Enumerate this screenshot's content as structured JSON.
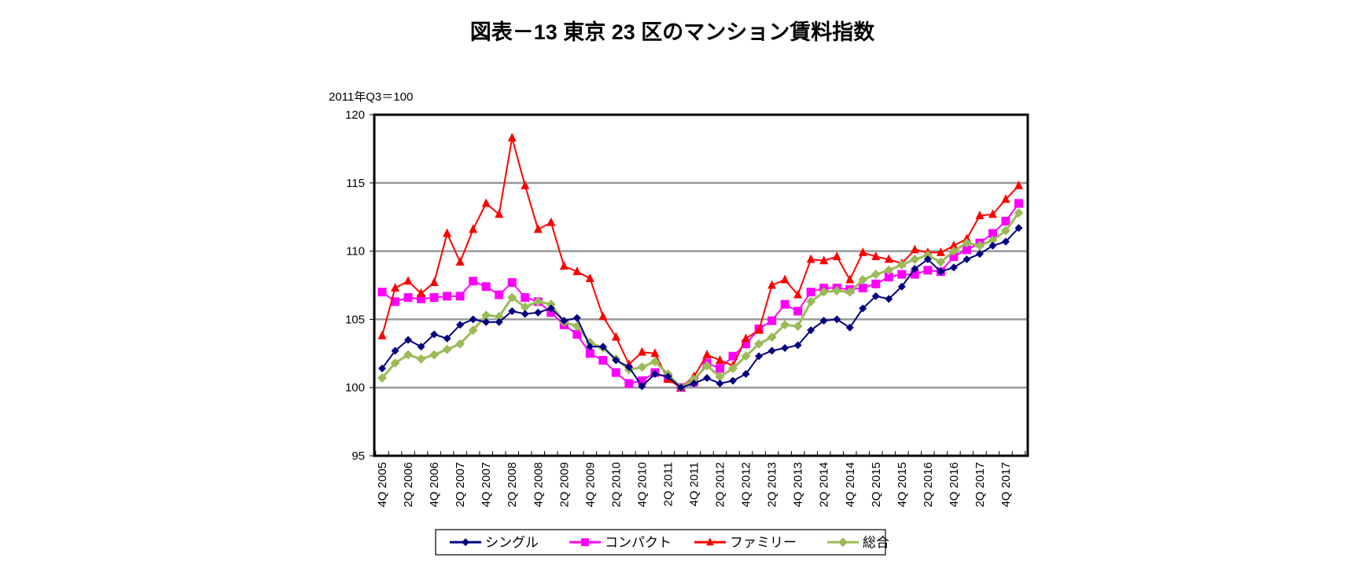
{
  "chart_data": {
    "type": "line",
    "title": "図表－13  東京 23 区のマンション賃料指数",
    "unit_label": "2011年Q3＝100",
    "xlabel": "",
    "ylabel": "",
    "ylim": [
      95,
      120
    ],
    "yticks": [
      95,
      100,
      105,
      110,
      115,
      120
    ],
    "grid": true,
    "legend_position": "bottom",
    "x": [
      "4Q 2005",
      "1Q 2006",
      "2Q 2006",
      "3Q 2006",
      "4Q 2006",
      "1Q 2007",
      "2Q 2007",
      "3Q 2007",
      "4Q 2007",
      "1Q 2008",
      "2Q 2008",
      "3Q 2008",
      "4Q 2008",
      "1Q 2009",
      "2Q 2009",
      "3Q 2009",
      "4Q 2009",
      "1Q 2010",
      "2Q 2010",
      "3Q 2010",
      "4Q 2010",
      "1Q 2011",
      "2Q 2011",
      "3Q 2011",
      "4Q 2011",
      "1Q 2012",
      "2Q 2012",
      "3Q 2012",
      "4Q 2012",
      "1Q 2013",
      "2Q 2013",
      "3Q 2013",
      "4Q 2013",
      "1Q 2014",
      "2Q 2014",
      "3Q 2014",
      "4Q 2014",
      "1Q 2015",
      "2Q 2015",
      "3Q 2015",
      "4Q 2015",
      "1Q 2016",
      "2Q 2016",
      "3Q 2016",
      "4Q 2016",
      "1Q 2017",
      "2Q 2017",
      "3Q 2017",
      "4Q 2017",
      "1Q 2018"
    ],
    "xtick_labels": [
      "4Q 2005",
      "2Q 2006",
      "4Q 2006",
      "2Q 2007",
      "4Q 2007",
      "2Q 2008",
      "4Q 2008",
      "2Q 2009",
      "4Q 2009",
      "2Q 2010",
      "4Q 2010",
      "2Q 2011",
      "4Q 2011",
      "2Q 2012",
      "4Q 2012",
      "2Q 2013",
      "4Q 2013",
      "2Q 2014",
      "4Q 2014",
      "2Q 2015",
      "4Q 2015",
      "2Q 2016",
      "4Q 2016",
      "2Q 2017",
      "4Q 2017"
    ],
    "series": [
      {
        "name": "シングル",
        "color": "#000080",
        "marker": "diamond",
        "values": [
          101.4,
          102.7,
          103.5,
          103.0,
          103.9,
          103.6,
          104.6,
          105.0,
          104.8,
          104.8,
          105.6,
          105.4,
          105.5,
          105.8,
          104.9,
          105.1,
          103.0,
          103.0,
          102.0,
          101.5,
          100.1,
          101.0,
          100.8,
          100.0,
          100.3,
          100.7,
          100.3,
          100.5,
          101.0,
          102.3,
          102.7,
          102.9,
          103.1,
          104.2,
          104.9,
          105.0,
          104.4,
          105.8,
          106.7,
          106.5,
          107.4,
          108.7,
          109.4,
          108.5,
          108.8,
          109.4,
          109.8,
          110.4,
          110.7,
          111.7
        ]
      },
      {
        "name": "コンパクト",
        "color": "#FF00FF",
        "marker": "square",
        "values": [
          107.0,
          106.3,
          106.6,
          106.5,
          106.6,
          106.7,
          106.7,
          107.8,
          107.4,
          106.8,
          107.7,
          106.6,
          106.3,
          105.5,
          104.6,
          103.9,
          102.5,
          102.0,
          101.1,
          100.3,
          100.5,
          101.1,
          100.7,
          100.0,
          100.4,
          101.8,
          101.4,
          102.3,
          103.2,
          104.3,
          104.9,
          106.1,
          105.6,
          107.0,
          107.3,
          107.3,
          107.2,
          107.3,
          107.6,
          108.1,
          108.3,
          108.3,
          108.6,
          108.5,
          109.6,
          110.1,
          110.6,
          111.3,
          112.2,
          113.5
        ]
      },
      {
        "name": "ファミリー",
        "color": "#FF0000",
        "marker": "triangle",
        "values": [
          103.8,
          107.3,
          107.8,
          106.9,
          107.7,
          111.3,
          109.2,
          111.6,
          113.5,
          112.7,
          118.3,
          114.8,
          111.6,
          112.1,
          108.9,
          108.5,
          108.0,
          105.2,
          103.7,
          101.7,
          102.6,
          102.5,
          100.6,
          100.0,
          100.8,
          102.4,
          102.0,
          101.6,
          103.6,
          104.2,
          107.5,
          107.9,
          106.8,
          109.4,
          109.3,
          109.6,
          107.9,
          109.9,
          109.6,
          109.4,
          109.1,
          110.1,
          109.9,
          109.9,
          110.4,
          110.9,
          112.6,
          112.7,
          113.8,
          114.8
        ]
      },
      {
        "name": "総合",
        "color": "#9BBB59",
        "marker": "diamond",
        "values": [
          100.7,
          101.8,
          102.4,
          102.1,
          102.4,
          102.8,
          103.2,
          104.2,
          105.3,
          105.2,
          106.6,
          105.9,
          106.3,
          106.1,
          104.8,
          104.5,
          103.3,
          102.9,
          102.1,
          101.3,
          101.5,
          101.9,
          101.0,
          100.0,
          100.6,
          101.6,
          100.8,
          101.4,
          102.3,
          103.2,
          103.7,
          104.6,
          104.5,
          106.3,
          107.0,
          107.1,
          107.0,
          107.9,
          108.3,
          108.6,
          109.0,
          109.4,
          109.7,
          109.2,
          110.0,
          110.6,
          110.4,
          110.8,
          111.5,
          112.8
        ]
      }
    ]
  }
}
